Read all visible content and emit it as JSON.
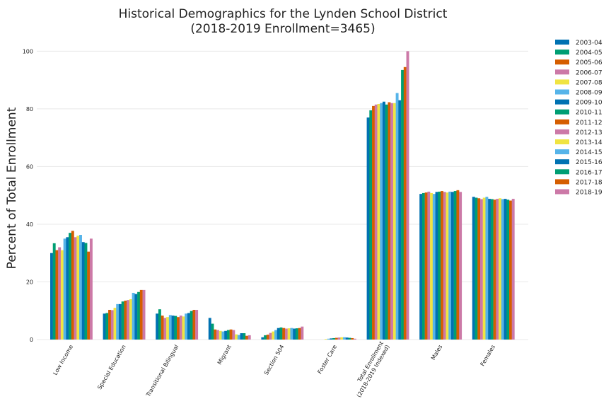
{
  "chart_data": {
    "type": "bar",
    "title": "Historical Demographics for the Lynden School District",
    "subtitle": "(2018-2019 Enrollment=3465)",
    "xlabel": "",
    "ylabel": "Percent of Total Enrollment",
    "ylim": [
      0,
      105
    ],
    "yticks": [
      0,
      20,
      40,
      60,
      80,
      100
    ],
    "grid": true,
    "legend_position": "outside-top-right",
    "categories": [
      "Low Income",
      "Special Education",
      "Transitional Bilingual",
      "Migrant",
      "Section 504",
      "Foster Care",
      "Total Enrollment\n(2018-2019 Indexed)",
      "Males",
      "Females"
    ],
    "series": [
      {
        "name": "2003-04",
        "color": "#0072B2",
        "values": [
          30.0,
          9.0,
          9.0,
          7.5,
          0.8,
          0.0,
          77.0,
          50.5,
          49.5
        ]
      },
      {
        "name": "2004-05",
        "color": "#009E73",
        "values": [
          33.4,
          9.2,
          10.5,
          5.5,
          1.5,
          0.0,
          79.5,
          50.8,
          49.2
        ]
      },
      {
        "name": "2005-06",
        "color": "#D55E00",
        "values": [
          31.0,
          10.3,
          8.3,
          3.5,
          1.7,
          0.0,
          81.0,
          51.0,
          49.0
        ]
      },
      {
        "name": "2006-07",
        "color": "#CC79A7",
        "values": [
          32.0,
          10.2,
          7.5,
          3.3,
          2.3,
          0.0,
          81.5,
          51.3,
          48.7
        ]
      },
      {
        "name": "2007-08",
        "color": "#F0E442",
        "values": [
          31.0,
          11.0,
          7.8,
          3.0,
          2.8,
          0.2,
          81.7,
          50.8,
          49.2
        ]
      },
      {
        "name": "2008-09",
        "color": "#56B4E9",
        "values": [
          35.0,
          12.3,
          8.5,
          2.8,
          3.3,
          0.3,
          82.0,
          50.5,
          49.5
        ]
      },
      {
        "name": "2009-10",
        "color": "#0072B2",
        "values": [
          35.5,
          12.3,
          8.3,
          3.0,
          4.0,
          0.4,
          82.5,
          51.2,
          48.8
        ]
      },
      {
        "name": "2010-11",
        "color": "#009E73",
        "values": [
          37.0,
          13.2,
          8.2,
          3.3,
          4.2,
          0.5,
          81.5,
          51.3,
          48.7
        ]
      },
      {
        "name": "2011-12",
        "color": "#D55E00",
        "values": [
          37.7,
          13.5,
          7.8,
          3.5,
          4.0,
          0.6,
          82.3,
          51.5,
          48.5
        ]
      },
      {
        "name": "2012-13",
        "color": "#CC79A7",
        "values": [
          35.5,
          13.7,
          8.3,
          3.3,
          3.8,
          0.7,
          82.0,
          51.2,
          48.8
        ]
      },
      {
        "name": "2013-14",
        "color": "#F0E442",
        "values": [
          36.0,
          14.0,
          8.0,
          1.8,
          3.9,
          0.8,
          82.0,
          51.0,
          49.0
        ]
      },
      {
        "name": "2014-15",
        "color": "#56B4E9",
        "values": [
          36.3,
          16.2,
          9.0,
          1.6,
          4.0,
          0.8,
          85.5,
          51.3,
          48.7
        ]
      },
      {
        "name": "2015-16",
        "color": "#0072B2",
        "values": [
          33.8,
          15.8,
          9.2,
          2.2,
          3.8,
          0.7,
          83.0,
          51.2,
          48.8
        ]
      },
      {
        "name": "2016-17",
        "color": "#009E73",
        "values": [
          33.5,
          16.5,
          9.9,
          2.2,
          3.9,
          0.6,
          93.5,
          51.5,
          48.5
        ]
      },
      {
        "name": "2017-18",
        "color": "#D55E00",
        "values": [
          30.5,
          17.2,
          10.3,
          1.3,
          4.0,
          0.5,
          94.5,
          51.8,
          48.2
        ]
      },
      {
        "name": "2018-19",
        "color": "#CC79A7",
        "values": [
          35.0,
          17.2,
          10.3,
          1.5,
          4.5,
          0.3,
          100.0,
          51.2,
          48.8
        ]
      }
    ]
  }
}
